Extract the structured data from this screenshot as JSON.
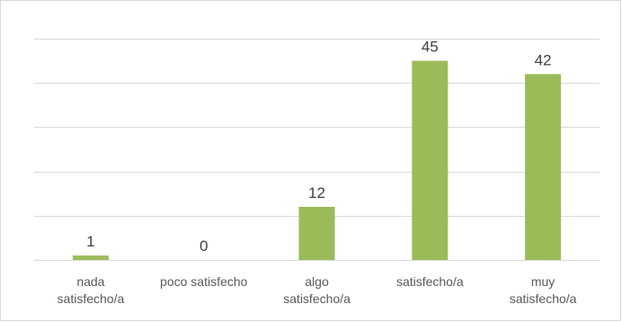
{
  "chart_data": {
    "type": "bar",
    "categories": [
      "nada\nsatisfecho/a",
      "poco satisfecho",
      "algo\nsatisfecho/a",
      "satisfecho/a",
      "muy\nsatisfecho/a"
    ],
    "values": [
      1,
      0,
      12,
      45,
      42
    ],
    "color": "#9bbb59",
    "ylim": [
      0,
      50
    ],
    "yticks": [
      0,
      10,
      20,
      30,
      40,
      50
    ],
    "grid": true
  }
}
